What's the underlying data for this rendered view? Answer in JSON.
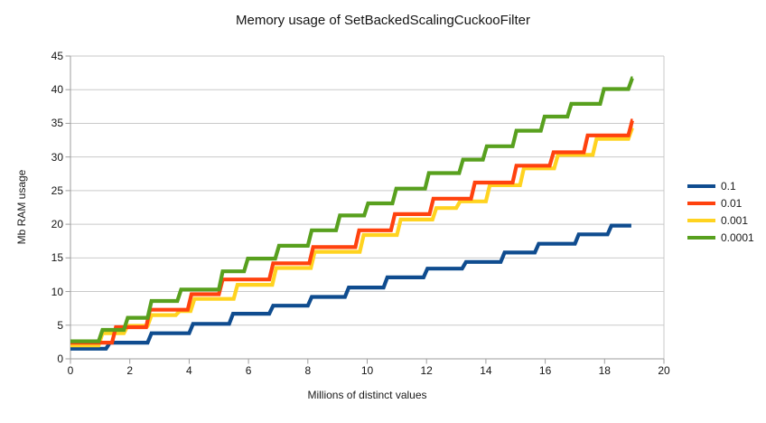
{
  "title": "Memory usage of SetBackedScalingCuckooFilter",
  "x_axis": {
    "label": "Millions of distinct values",
    "min": 0,
    "max": 20,
    "ticks": [
      0,
      2,
      4,
      6,
      8,
      10,
      12,
      14,
      16,
      18,
      20
    ]
  },
  "y_axis": {
    "label": "Mb RAM usage",
    "min": 0,
    "max": 45,
    "ticks": [
      0,
      5,
      10,
      15,
      20,
      25,
      30,
      35,
      40,
      45
    ]
  },
  "legend": {
    "position": "right",
    "item_labels": [
      "0.1",
      "0.01",
      "0.001",
      "0.0001"
    ]
  },
  "colors": {
    "grid": "#c9c9c9",
    "axis": "#9e9e9e",
    "wall_border": "#c9c9c9",
    "text": "#141414"
  },
  "chart_data": {
    "type": "line",
    "step_style": "step-after",
    "grid": "horizontal-only",
    "legend_position": "right",
    "xlabel": "Millions of distinct values",
    "ylabel": "Mb RAM usage",
    "xlim": [
      0,
      20
    ],
    "ylim": [
      0,
      45
    ],
    "series": [
      {
        "name": "0.1",
        "color": "#0f4c8f",
        "end_x": 18.9,
        "points": [
          [
            0,
            1.5
          ],
          [
            1.2,
            2.4
          ],
          [
            2.6,
            3.8
          ],
          [
            4.0,
            5.2
          ],
          [
            5.35,
            6.7
          ],
          [
            6.7,
            7.9
          ],
          [
            8.0,
            9.2
          ],
          [
            9.25,
            10.6
          ],
          [
            10.55,
            12.1
          ],
          [
            11.9,
            13.4
          ],
          [
            13.2,
            14.4
          ],
          [
            14.5,
            15.8
          ],
          [
            15.65,
            17.1
          ],
          [
            17.0,
            18.5
          ],
          [
            18.1,
            19.8
          ]
        ]
      },
      {
        "name": "0.01",
        "color": "#ff420e",
        "end_x": 18.95,
        "points": [
          [
            0,
            2.4
          ],
          [
            1.4,
            4.7
          ],
          [
            2.55,
            7.3
          ],
          [
            3.95,
            9.6
          ],
          [
            5.0,
            11.8
          ],
          [
            6.7,
            14.2
          ],
          [
            8.05,
            16.6
          ],
          [
            9.6,
            19.1
          ],
          [
            10.8,
            21.5
          ],
          [
            12.1,
            23.8
          ],
          [
            13.5,
            26.2
          ],
          [
            14.9,
            28.7
          ],
          [
            16.15,
            30.7
          ],
          [
            17.3,
            33.2
          ],
          [
            18.8,
            35.4
          ]
        ]
      },
      {
        "name": "0.001",
        "color": "#ffd320",
        "end_x": 18.95,
        "points": [
          [
            0,
            2.0
          ],
          [
            0.95,
            3.8
          ],
          [
            1.8,
            4.9
          ],
          [
            2.6,
            6.5
          ],
          [
            3.55,
            7.1
          ],
          [
            4.05,
            8.9
          ],
          [
            5.5,
            11.0
          ],
          [
            6.8,
            13.5
          ],
          [
            8.1,
            15.9
          ],
          [
            9.75,
            18.4
          ],
          [
            11.0,
            20.7
          ],
          [
            12.2,
            22.4
          ],
          [
            13.0,
            23.4
          ],
          [
            14.0,
            25.8
          ],
          [
            15.15,
            28.3
          ],
          [
            16.3,
            30.3
          ],
          [
            17.6,
            32.7
          ],
          [
            18.8,
            34.3
          ]
        ]
      },
      {
        "name": "0.0001",
        "color": "#58a01e",
        "end_x": 18.95,
        "points": [
          [
            0,
            2.6
          ],
          [
            0.95,
            4.3
          ],
          [
            1.8,
            6.1
          ],
          [
            2.6,
            8.6
          ],
          [
            3.6,
            10.3
          ],
          [
            5.0,
            13.0
          ],
          [
            5.85,
            14.9
          ],
          [
            6.9,
            16.8
          ],
          [
            8.0,
            19.1
          ],
          [
            8.95,
            21.3
          ],
          [
            9.9,
            23.1
          ],
          [
            10.85,
            25.3
          ],
          [
            11.95,
            27.6
          ],
          [
            13.1,
            29.6
          ],
          [
            13.9,
            31.6
          ],
          [
            14.9,
            33.9
          ],
          [
            15.85,
            36.0
          ],
          [
            16.75,
            37.9
          ],
          [
            17.85,
            40.1
          ],
          [
            18.8,
            41.7
          ]
        ]
      }
    ],
    "render_order": [
      0,
      2,
      1,
      3
    ]
  }
}
